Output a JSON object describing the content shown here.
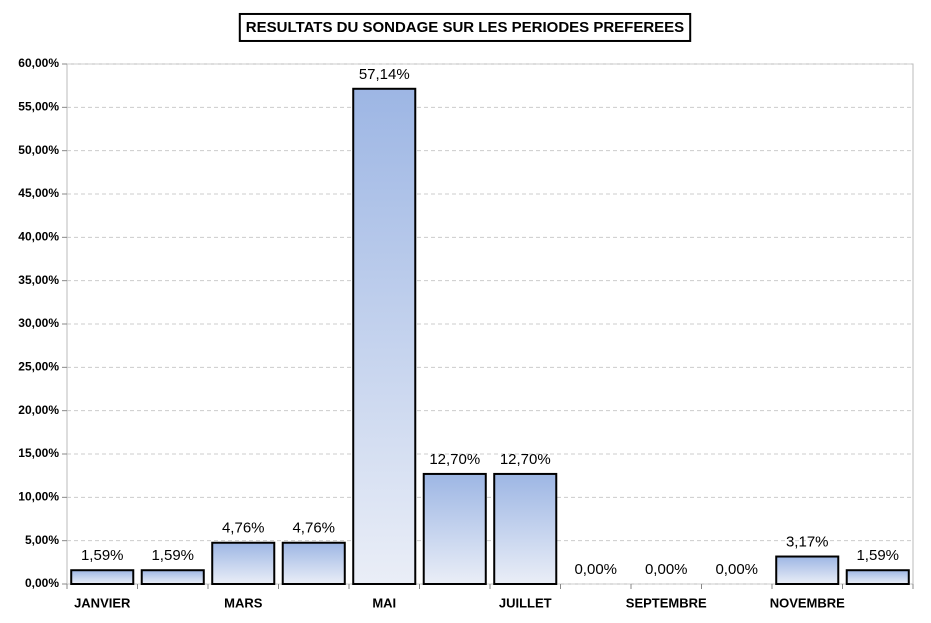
{
  "chart_data": {
    "type": "bar",
    "title": "RESULTATS DU SONDAGE SUR LES PERIODES PREFEREES",
    "categories": [
      "JANVIER",
      null,
      "MARS",
      null,
      "MAI",
      null,
      "JUILLET",
      null,
      "SEPTEMBRE",
      null,
      "NOVEMBRE",
      null
    ],
    "values": [
      1.59,
      1.59,
      4.76,
      4.76,
      57.14,
      12.7,
      12.7,
      0,
      0,
      0,
      3.17,
      1.59
    ],
    "value_labels": [
      "1,59%",
      "1,59%",
      "4,76%",
      "4,76%",
      "57,14%",
      "12,70%",
      "12,70%",
      "0,00%",
      "0,00%",
      "0,00%",
      "3,17%",
      "1,59%"
    ],
    "color": "#9db6e4",
    "ylim": [
      0,
      60
    ],
    "yticks": [
      {
        "value": 0,
        "label": "0,00%"
      },
      {
        "value": 5,
        "label": "5,00%"
      },
      {
        "value": 10,
        "label": "10,00%"
      },
      {
        "value": 15,
        "label": "15,00%"
      },
      {
        "value": 20,
        "label": "20,00%"
      },
      {
        "value": 25,
        "label": "25,00%"
      },
      {
        "value": 30,
        "label": "30,00%"
      },
      {
        "value": 35,
        "label": "35,00%"
      },
      {
        "value": 40,
        "label": "40,00%"
      },
      {
        "value": 45,
        "label": "45,00%"
      },
      {
        "value": 50,
        "label": "50,00%"
      },
      {
        "value": 55,
        "label": "55,00%"
      },
      {
        "value": 60,
        "label": "60,00%"
      }
    ],
    "grid": true
  }
}
